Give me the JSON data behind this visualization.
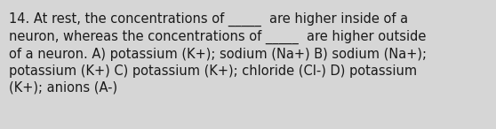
{
  "lines": [
    "14. At rest, the concentrations of _____  are higher inside of a",
    "neuron, whereas the concentrations of _____  are higher outside",
    "of a neuron. A) potassium (K+); sodium (Na+) B) sodium (Na+);",
    "potassium (K+) C) potassium (K+); chloride (Cl-) D) potassium",
    "(K+); anions (A-)"
  ],
  "background_color": "#d6d6d6",
  "text_color": "#1a1a1a",
  "font_size": 10.5,
  "fig_width": 5.58,
  "fig_height": 1.46,
  "dpi": 100
}
